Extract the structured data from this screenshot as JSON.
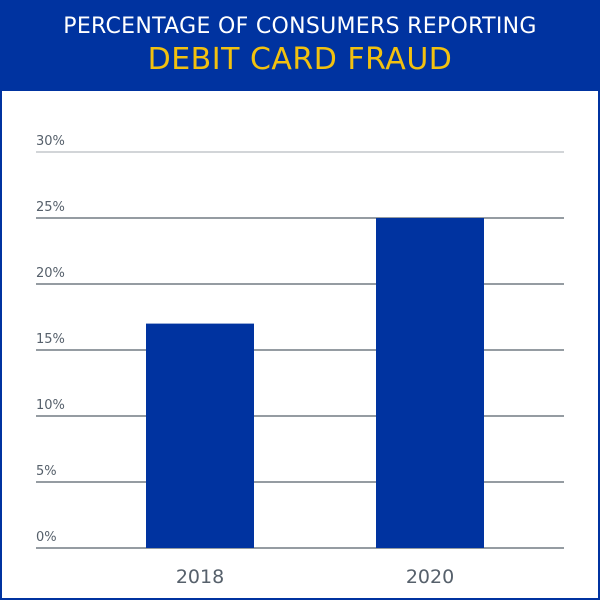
{
  "header": {
    "title_line1": "PERCENTAGE OF CONSUMERS REPORTING",
    "title_line2": "DEBIT CARD FRAUD"
  },
  "colors": {
    "frame": "#0033a0",
    "bar": "#0033a0",
    "title_accent": "#f2c10f",
    "grid": "#56606b",
    "top_grid": "#b8bcc0"
  },
  "chart_data": {
    "type": "bar",
    "title": "PERCENTAGE OF CONSUMERS REPORTING DEBIT CARD FRAUD",
    "categories": [
      "2018",
      "2020"
    ],
    "values": [
      17,
      25
    ],
    "xlabel": "",
    "ylabel": "",
    "ylim": [
      0,
      30
    ],
    "yticks": [
      0,
      5,
      10,
      15,
      20,
      25,
      30
    ],
    "ytick_labels": [
      "0%",
      "5%",
      "10%",
      "15%",
      "20%",
      "25%",
      "30%"
    ],
    "grid": true,
    "legend": "none"
  }
}
